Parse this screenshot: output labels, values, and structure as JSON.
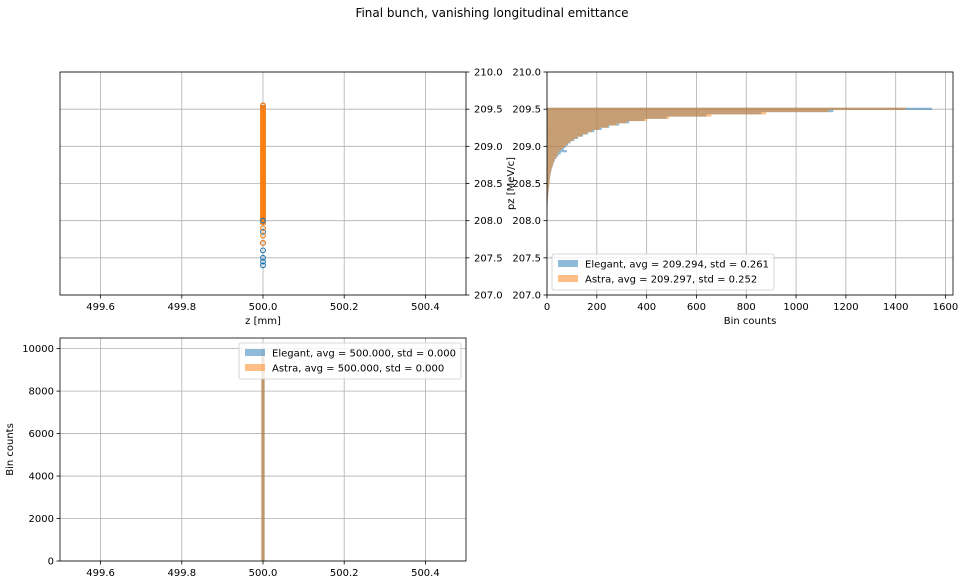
{
  "figure": {
    "suptitle": "Final bunch, vanishing longitudinal emittance"
  },
  "chart_data": [
    {
      "id": "scatter",
      "type": "scatter",
      "title": "",
      "xlabel": "z [mm]",
      "ylabel": "",
      "xlim": [
        499.5,
        500.5
      ],
      "ylim": [
        207.0,
        210.0
      ],
      "xticks": [
        "499.6",
        "499.8",
        "500.0",
        "500.2",
        "500.4"
      ],
      "xtick_values": [
        499.6,
        499.8,
        500.0,
        500.2,
        500.4
      ],
      "yticks": [
        "207.0",
        "207.5",
        "208.0",
        "208.5",
        "209.0",
        "209.5",
        "210.0"
      ],
      "ytick_values": [
        207.0,
        207.5,
        208.0,
        208.5,
        209.0,
        209.5,
        210.0
      ],
      "grid": true,
      "series": [
        {
          "color": "#1f77b4",
          "x": [
            500.0,
            500.0,
            500.0,
            500.0,
            500.0,
            500.0,
            500.0,
            500.0
          ],
          "y": [
            207.4,
            207.45,
            207.5,
            207.6,
            207.7,
            207.85,
            208.0,
            209.55
          ]
        },
        {
          "color": "#ff7f0e",
          "x": [
            500.0,
            500.0,
            500.0,
            500.0
          ],
          "y": [
            207.7,
            207.8,
            207.9,
            209.55
          ]
        }
      ],
      "dense_band": {
        "x": 500.0,
        "y_range": [
          207.95,
          209.55
        ]
      }
    },
    {
      "id": "pz-hist",
      "type": "bar",
      "orientation": "horizontal",
      "xlabel": "Bin counts",
      "ylabel": "pz [MeV/c]",
      "xlim": [
        0,
        1630
      ],
      "ylim": [
        207.0,
        210.0
      ],
      "xticks": [
        "0",
        "200",
        "400",
        "600",
        "800",
        "1000",
        "1200",
        "1400",
        "1600"
      ],
      "xtick_values": [
        0,
        200,
        400,
        600,
        800,
        1000,
        1200,
        1400,
        1600
      ],
      "yticks": [
        "207.0",
        "207.5",
        "208.0",
        "208.5",
        "209.0",
        "209.5",
        "210.0"
      ],
      "ytick_values": [
        207.0,
        207.5,
        208.0,
        208.5,
        209.0,
        209.5,
        210.0
      ],
      "grid": true,
      "legend_position": "lower-left",
      "bin_width": 0.03,
      "bin_edges_top": [
        209.52,
        209.49,
        209.46,
        209.43,
        209.4,
        209.37,
        209.34,
        209.31,
        209.28,
        209.25,
        209.22,
        209.19,
        209.16,
        209.13,
        209.1,
        209.07,
        209.04,
        209.01,
        208.98,
        208.95,
        208.92,
        208.89,
        208.86,
        208.83,
        208.8,
        208.77,
        208.74,
        208.71,
        208.68,
        208.65,
        208.62,
        208.59,
        208.56,
        208.53,
        208.5,
        208.47,
        208.44,
        208.41,
        208.38,
        208.35,
        208.32,
        208.29,
        208.26,
        208.23,
        208.2,
        208.17,
        208.14
      ],
      "series": [
        {
          "name": "Elegant, avg = 209.294, std = 0.261",
          "color": "#1f77b4",
          "alpha": 0.5,
          "values": [
            1545,
            1150,
            860,
            640,
            480,
            390,
            330,
            290,
            250,
            220,
            190,
            165,
            145,
            125,
            110,
            95,
            85,
            75,
            68,
            80,
            55,
            45,
            38,
            32,
            28,
            25,
            22,
            19,
            17,
            15,
            13,
            12,
            11,
            10,
            9,
            8,
            7,
            6,
            5,
            5,
            4,
            3,
            3,
            2,
            2,
            1,
            1
          ]
        },
        {
          "name": "Astra, avg = 209.297, std = 0.252",
          "color": "#ff7f0e",
          "alpha": 0.5,
          "values": [
            1440,
            1130,
            880,
            660,
            490,
            400,
            320,
            280,
            245,
            210,
            180,
            160,
            140,
            120,
            105,
            90,
            80,
            70,
            60,
            50,
            45,
            40,
            35,
            30,
            27,
            24,
            21,
            18,
            16,
            14,
            13,
            12,
            11,
            10,
            9,
            8,
            7,
            6,
            5,
            4,
            4,
            3,
            3,
            2,
            2,
            1,
            1
          ]
        }
      ]
    },
    {
      "id": "z-hist",
      "type": "bar",
      "xlabel": "",
      "ylabel": "Bin counts",
      "xlim": [
        499.5,
        500.5
      ],
      "ylim": [
        0,
        10500
      ],
      "xticks": [
        "499.6",
        "499.8",
        "500.0",
        "500.2",
        "500.4"
      ],
      "xtick_values": [
        499.6,
        499.8,
        500.0,
        500.2,
        500.4
      ],
      "yticks": [
        "0",
        "2000",
        "4000",
        "6000",
        "8000",
        "10000"
      ],
      "ytick_values": [
        0,
        2000,
        4000,
        6000,
        8000,
        10000
      ],
      "grid": true,
      "legend_position": "upper-right",
      "bin_center": 500.0,
      "bin_width": 0.008,
      "series": [
        {
          "name": "Elegant, avg = 500.000, std = 0.000",
          "color": "#1f77b4",
          "alpha": 0.5,
          "values": [
            10000
          ]
        },
        {
          "name": "Astra, avg = 500.000, std = 0.000",
          "color": "#ff7f0e",
          "alpha": 0.5,
          "values": [
            10000
          ]
        }
      ]
    }
  ]
}
